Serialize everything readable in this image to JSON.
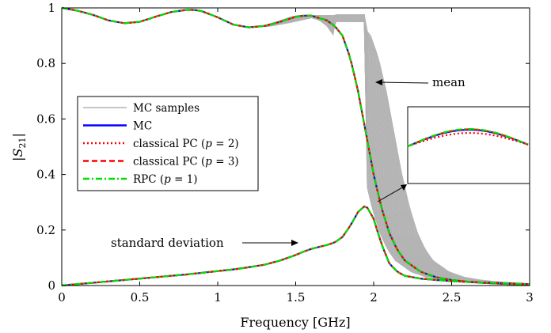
{
  "chart_data": {
    "type": "line",
    "xlabel": "Frequency [GHz]",
    "ylabel": "|S21|",
    "xlim": [
      0,
      3
    ],
    "ylim": [
      0,
      1
    ],
    "x_ticks": [
      "0",
      "0.5",
      "1",
      "1.5",
      "2",
      "2.5",
      "3"
    ],
    "y_ticks": [
      "0",
      "0.2",
      "0.4",
      "0.6",
      "0.8",
      "1"
    ],
    "grid": false,
    "legend_position": "center-left",
    "legend": [
      {
        "label": "MC samples",
        "color": "#b3b3b3",
        "style": "solid"
      },
      {
        "label": "MC",
        "color": "#0000ff",
        "style": "solid"
      },
      {
        "label": "classical PC (p = 2)",
        "color": "#ff0000",
        "style": "dotted"
      },
      {
        "label": "classical PC (p = 3)",
        "color": "#ff0000",
        "style": "dashed"
      },
      {
        "label": "RPC (p = 1)",
        "color": "#00ff00",
        "style": "dashdot"
      }
    ],
    "annotations": [
      {
        "text": "mean"
      },
      {
        "text": "standard deviation"
      }
    ],
    "x": [
      0,
      0.1,
      0.2,
      0.3,
      0.4,
      0.5,
      0.6,
      0.7,
      0.8,
      0.85,
      0.9,
      1.0,
      1.1,
      1.2,
      1.3,
      1.4,
      1.5,
      1.55,
      1.6,
      1.7,
      1.75,
      1.8,
      1.85,
      1.9,
      1.95,
      2.0,
      2.05,
      2.1,
      2.15,
      2.2,
      2.3,
      2.4,
      2.5,
      2.6,
      2.7,
      2.8,
      2.9,
      3.0
    ],
    "series": [
      {
        "name": "mean",
        "values": [
          1.0,
          0.99,
          0.975,
          0.955,
          0.945,
          0.95,
          0.968,
          0.985,
          0.993,
          0.993,
          0.988,
          0.966,
          0.94,
          0.93,
          0.935,
          0.95,
          0.968,
          0.972,
          0.972,
          0.955,
          0.935,
          0.9,
          0.82,
          0.7,
          0.55,
          0.4,
          0.28,
          0.19,
          0.13,
          0.09,
          0.05,
          0.03,
          0.02,
          0.014,
          0.01,
          0.007,
          0.005,
          0.004
        ]
      },
      {
        "name": "standard deviation",
        "values": [
          0.0,
          0.005,
          0.01,
          0.015,
          0.02,
          0.025,
          0.03,
          0.035,
          0.04,
          0.043,
          0.046,
          0.052,
          0.058,
          0.066,
          0.075,
          0.09,
          0.11,
          0.122,
          0.132,
          0.146,
          0.155,
          0.175,
          0.215,
          0.265,
          0.29,
          0.24,
          0.15,
          0.08,
          0.05,
          0.035,
          0.025,
          0.02,
          0.016,
          0.013,
          0.011,
          0.009,
          0.007,
          0.005
        ]
      }
    ],
    "inset": {
      "note": "zoom of peak region",
      "series": [
        {
          "name": "MC",
          "color": "#0000ff",
          "values": [
            0.0,
            0.72,
            1.0,
            0.72,
            0.0
          ]
        },
        {
          "name": "classical PC (p = 2)",
          "color": "#ff0000",
          "values": [
            0.0,
            0.55,
            0.8,
            0.55,
            0.0
          ]
        },
        {
          "name": "classical PC (p = 3)",
          "color": "#ff0000",
          "values": [
            0.0,
            0.75,
            1.03,
            0.75,
            0.0
          ]
        },
        {
          "name": "RPC (p = 1)",
          "color": "#00ff00",
          "values": [
            0.0,
            0.76,
            1.05,
            0.76,
            0.0
          ]
        }
      ]
    }
  }
}
